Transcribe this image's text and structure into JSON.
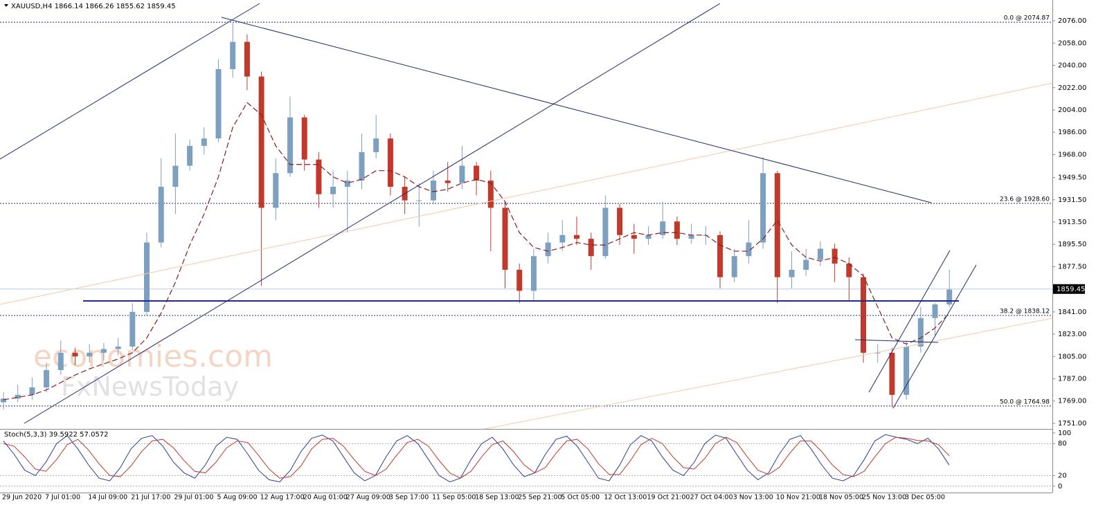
{
  "watermark": [
    "economies.com",
    "FxNewsToday"
  ],
  "chart_data": [
    {
      "type": "candlestick",
      "title": "XAUUSD,H4  1866.14 1866.26 1855.62 1859.45",
      "categories": [
        "29 Jun 2020",
        null,
        null,
        "7 Jul 01:00",
        null,
        null,
        "14 Jul 09:00",
        null,
        null,
        "21 Jul 17:00",
        null,
        null,
        "29 Jul 01:00",
        null,
        null,
        "5 Aug 09:00",
        null,
        null,
        "12 Aug 17:00",
        null,
        null,
        "20 Aug 01:00",
        null,
        null,
        "27 Aug 09:00",
        null,
        null,
        "3 Sep 17:00",
        null,
        null,
        "11 Sep 05:00",
        null,
        null,
        "18 Sep 13:00",
        null,
        null,
        "25 Sep 21:00",
        null,
        null,
        "5 Oct 05:00",
        null,
        null,
        "12 Oct 13:00",
        null,
        null,
        "19 Oct 21:00",
        null,
        null,
        "27 Oct 04:00",
        null,
        null,
        "3 Nov 13:00",
        null,
        null,
        "10 Nov 21:00",
        null,
        null,
        "18 Nov 05:00",
        null,
        null,
        "25 Nov 13:00",
        null,
        null,
        "3 Dec 05:00",
        null,
        null,
        null
      ],
      "open": [
        1768,
        1771,
        1774,
        1780,
        1794,
        1808,
        1805,
        1808,
        1811,
        1813,
        1841,
        1897,
        1942,
        1959,
        1975,
        1981,
        2037,
        2059,
        2031,
        1925,
        1953,
        1998,
        1964,
        1936,
        1942,
        1947,
        1970,
        1981,
        1942,
        1931,
        1931,
        1947,
        1945,
        1959,
        1947,
        1925,
        1875,
        1858,
        1886,
        1897,
        1903,
        1900,
        1886,
        1925,
        1903,
        1900,
        1903,
        1914,
        1900,
        1903,
        1903,
        1869,
        1886,
        1897,
        1953,
        1869,
        1875,
        1883,
        1892,
        1880,
        1869,
        1808,
        1808,
        1774,
        1813,
        1836,
        1847
      ],
      "high": [
        1776,
        1782,
        1788,
        1800,
        1818,
        1812,
        1815,
        1816,
        1820,
        1848,
        1905,
        1965,
        1985,
        1980,
        1990,
        2045,
        2075,
        2065,
        2035,
        1965,
        2015,
        2000,
        1970,
        1955,
        1955,
        1985,
        2000,
        1985,
        1950,
        1945,
        1955,
        1962,
        1975,
        1962,
        1955,
        1930,
        1880,
        1892,
        1905,
        1915,
        1918,
        1905,
        1935,
        1928,
        1912,
        1910,
        1930,
        1918,
        1912,
        1910,
        1906,
        1892,
        1915,
        1966,
        1955,
        1890,
        1892,
        1898,
        1896,
        1885,
        1872,
        1815,
        1812,
        1818,
        1845,
        1848,
        1875
      ],
      "low": [
        1762,
        1768,
        1770,
        1776,
        1790,
        1798,
        1800,
        1802,
        1806,
        1810,
        1838,
        1893,
        1920,
        1955,
        1968,
        1978,
        2030,
        2020,
        1862,
        1915,
        1950,
        1955,
        1925,
        1925,
        1905,
        1940,
        1965,
        1935,
        1920,
        1910,
        1928,
        1938,
        1940,
        1935,
        1890,
        1860,
        1848,
        1850,
        1880,
        1890,
        1895,
        1875,
        1884,
        1895,
        1888,
        1895,
        1900,
        1895,
        1896,
        1895,
        1860,
        1865,
        1880,
        1892,
        1848,
        1860,
        1870,
        1878,
        1865,
        1850,
        1800,
        1800,
        1764,
        1770,
        1808,
        1822,
        1845
      ],
      "close": [
        1771,
        1774,
        1780,
        1794,
        1808,
        1805,
        1808,
        1811,
        1813,
        1841,
        1897,
        1942,
        1959,
        1975,
        1981,
        2037,
        2059,
        2031,
        1925,
        1953,
        1998,
        1964,
        1936,
        1942,
        1947,
        1970,
        1981,
        1942,
        1931,
        1931,
        1947,
        1945,
        1959,
        1947,
        1925,
        1875,
        1858,
        1886,
        1897,
        1903,
        1900,
        1886,
        1925,
        1903,
        1900,
        1903,
        1914,
        1900,
        1903,
        1903,
        1869,
        1886,
        1897,
        1953,
        1869,
        1875,
        1883,
        1892,
        1880,
        1869,
        1808,
        1808,
        1774,
        1813,
        1836,
        1847,
        1859
      ],
      "up_color": "#7d9fc0",
      "down_color": "#c0392b",
      "ma": {
        "color": "#8b1a1a",
        "values": [
          1770,
          1772,
          1774,
          1778,
          1784,
          1790,
          1795,
          1799,
          1803,
          1808,
          1820,
          1840,
          1865,
          1895,
          1920,
          1950,
          1990,
          2010,
          2000,
          1975,
          1960,
          1960,
          1960,
          1950,
          1945,
          1948,
          1955,
          1955,
          1950,
          1942,
          1938,
          1940,
          1945,
          1948,
          1945,
          1930,
          1905,
          1893,
          1890,
          1893,
          1897,
          1895,
          1895,
          1900,
          1905,
          1903,
          1905,
          1905,
          1903,
          1903,
          1895,
          1890,
          1890,
          1900,
          1915,
          1895,
          1885,
          1882,
          1885,
          1880,
          1870,
          1845,
          1820,
          1815,
          1820,
          1828,
          1840
        ]
      },
      "ylim": [
        1746.5,
        2092.8
      ],
      "yticks": [
        {
          "value": 2076,
          "label": "2076.00"
        },
        {
          "value": 2058,
          "label": "2058.00"
        },
        {
          "value": 2040,
          "label": "2040.00"
        },
        {
          "value": 2022,
          "label": "2022.00"
        },
        {
          "value": 2004,
          "label": "2004.00"
        },
        {
          "value": 1986,
          "label": "1986.00"
        },
        {
          "value": 1968,
          "label": "1968.00"
        },
        {
          "value": 1949.5,
          "label": "1949.50"
        },
        {
          "value": 1931.5,
          "label": "1931.50"
        },
        {
          "value": 1913.5,
          "label": "1913.50"
        },
        {
          "value": 1895.5,
          "label": "1895.50"
        },
        {
          "value": 1877.5,
          "label": "1877.50"
        },
        {
          "value": 1841,
          "label": "1841.00"
        },
        {
          "value": 1823,
          "label": "1823.00"
        },
        {
          "value": 1805,
          "label": "1805.00"
        },
        {
          "value": 1787,
          "label": "1787.00"
        },
        {
          "value": 1769,
          "label": "1769.00"
        },
        {
          "value": 1751,
          "label": "1751.00"
        }
      ],
      "levels": [
        {
          "value": 2074.87,
          "label": "0.0 @ 2074.87"
        },
        {
          "value": 1928.6,
          "label": "23.6 @ 1928.60"
        },
        {
          "value": 1838.12,
          "label": "38.2 @ 1838.12"
        },
        {
          "value": 1764.98,
          "label": "50.0 @ 1764.98"
        }
      ],
      "current_price": 1859.45
    },
    {
      "type": "line",
      "title": "Stoch(5,3,3) 39.5922 57.0572",
      "ylim": [
        -12,
        105
      ],
      "yticks": [
        100,
        80,
        20,
        0
      ],
      "series": [
        {
          "color": "#2b3a9a",
          "values": [
            85,
            60,
            30,
            20,
            45,
            80,
            95,
            70,
            40,
            15,
            10,
            35,
            70,
            90,
            95,
            75,
            45,
            25,
            15,
            40,
            75,
            92,
            88,
            60,
            30,
            12,
            8,
            30,
            65,
            90,
            96,
            85,
            55,
            25,
            10,
            20,
            55,
            85,
            95,
            80,
            50,
            20,
            8,
            15,
            50,
            80,
            92,
            70,
            40,
            18,
            25,
            60,
            88,
            94,
            75,
            45,
            15,
            10,
            40,
            78,
            95,
            85,
            55,
            30,
            20,
            45,
            80,
            96,
            90,
            60,
            30,
            12,
            25,
            60,
            88,
            95,
            70,
            40,
            15,
            10,
            20,
            50,
            85,
            97,
            92,
            88,
            80,
            90,
            70,
            39.6
          ]
        },
        {
          "color": "#c0392b",
          "values": [
            80,
            75,
            55,
            32,
            28,
            50,
            78,
            88,
            68,
            42,
            20,
            18,
            38,
            65,
            85,
            88,
            72,
            48,
            28,
            25,
            45,
            72,
            85,
            82,
            58,
            32,
            15,
            18,
            38,
            70,
            88,
            90,
            75,
            50,
            28,
            20,
            32,
            58,
            82,
            88,
            75,
            48,
            25,
            15,
            28,
            55,
            78,
            85,
            65,
            40,
            25,
            35,
            62,
            85,
            88,
            70,
            42,
            22,
            22,
            48,
            78,
            90,
            80,
            55,
            35,
            32,
            52,
            80,
            92,
            82,
            55,
            30,
            22,
            35,
            62,
            85,
            85,
            65,
            40,
            22,
            18,
            28,
            55,
            80,
            92,
            90,
            86,
            85,
            78,
            57.1
          ]
        }
      ]
    }
  ]
}
